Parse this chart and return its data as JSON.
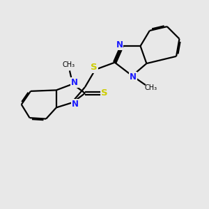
{
  "bg_color": "#e8e8e8",
  "bond_color": "#000000",
  "N_color": "#1a1aff",
  "S_color": "#cccc00",
  "line_width": 1.6,
  "font_size_atom": 8.5,
  "fig_size": [
    3.0,
    3.0
  ],
  "dpi": 100,
  "xlim": [
    0,
    10
  ],
  "ylim": [
    0,
    10
  ]
}
